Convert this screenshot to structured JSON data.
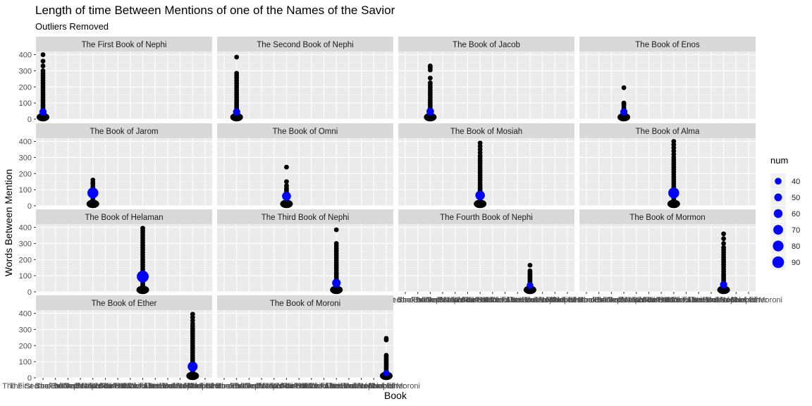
{
  "chart_data": {
    "type": "scatter",
    "title": "Length of time Between Mentions of one of the Names of the Savior",
    "subtitle": "Outliers Removed",
    "xlabel": "Book",
    "ylabel": "Words Between Mention",
    "ylim": [
      0,
      420
    ],
    "yticks": [
      0,
      100,
      200,
      300,
      400
    ],
    "grid": true,
    "facet_layout": "wrap 4 columns",
    "legend": {
      "title": "num",
      "placement": "right",
      "values": [
        40,
        50,
        60,
        70,
        80,
        90
      ],
      "color": "#0000ff"
    },
    "point_color": "#000000",
    "mean_color": "#0000ff",
    "categories": [
      "The First Book of Nephi",
      "The Second Book of Nephi",
      "The Book of Jacob",
      "The Book of Enos",
      "The Book of Jarom",
      "The Book of Omni",
      "The Book of Mosiah",
      "The Book of Alma",
      "The Book of Helaman",
      "The Third Book of Nephi",
      "The Fourth Book of Nephi",
      "The Book of Mormon",
      "The Book of Ether",
      "The Book of Moroni"
    ],
    "panels": [
      {
        "name": "The First Book of Nephi",
        "book_index": 0,
        "max": 400,
        "mean_y": 45,
        "num": 45,
        "points": [
          400,
          360,
          330,
          300,
          285,
          270,
          255,
          240,
          225,
          210,
          195,
          180,
          165,
          150,
          135,
          120,
          108,
          96,
          84,
          72,
          60,
          48,
          36,
          24,
          15,
          8
        ]
      },
      {
        "name": "The Second Book of Nephi",
        "book_index": 1,
        "max": 385,
        "mean_y": 45,
        "num": 45,
        "points": [
          385,
          285,
          270,
          255,
          240,
          225,
          210,
          195,
          180,
          165,
          150,
          135,
          120,
          108,
          96,
          84,
          72,
          60,
          48,
          36,
          24,
          15,
          8
        ]
      },
      {
        "name": "The Book of Jacob",
        "book_index": 2,
        "max": 330,
        "mean_y": 48,
        "num": 48,
        "points": [
          330,
          320,
          305,
          255,
          225,
          210,
          195,
          180,
          165,
          150,
          135,
          120,
          108,
          96,
          84,
          72,
          60,
          48,
          36,
          24,
          15,
          8
        ]
      },
      {
        "name": "The Book of Enos",
        "book_index": 3,
        "max": 195,
        "mean_y": 45,
        "num": 45,
        "points": [
          195,
          100,
          95,
          85,
          70,
          60,
          50,
          40,
          30,
          20,
          12
        ]
      },
      {
        "name": "The Book of Jarom",
        "book_index": 4,
        "max": 160,
        "mean_y": 80,
        "num": 82,
        "points": [
          160,
          145,
          135,
          120,
          110,
          95,
          40,
          20,
          15,
          12
        ]
      },
      {
        "name": "The Book of Omni",
        "book_index": 5,
        "max": 240,
        "mean_y": 60,
        "num": 62,
        "points": [
          240,
          150,
          125,
          110,
          100,
          90,
          80,
          70,
          50,
          40,
          30,
          20,
          12
        ]
      },
      {
        "name": "The Book of Mosiah",
        "book_index": 6,
        "max": 390,
        "mean_y": 65,
        "num": 68,
        "points": [
          390,
          370,
          350,
          330,
          310,
          295,
          280,
          265,
          250,
          235,
          220,
          205,
          190,
          175,
          160,
          145,
          130,
          118,
          106,
          94,
          82,
          70,
          58,
          46,
          34,
          24,
          15,
          8
        ]
      },
      {
        "name": "The Book of Alma",
        "book_index": 7,
        "max": 400,
        "mean_y": 80,
        "num": 82,
        "points": [
          400,
          380,
          360,
          340,
          320,
          300,
          285,
          270,
          255,
          240,
          225,
          210,
          195,
          180,
          165,
          150,
          135,
          120,
          108,
          96,
          84,
          72,
          60,
          48,
          36,
          24,
          15,
          8
        ]
      },
      {
        "name": "The Book of Helaman",
        "book_index": 8,
        "max": 395,
        "mean_y": 95,
        "num": 92,
        "points": [
          395,
          380,
          365,
          350,
          335,
          320,
          305,
          290,
          275,
          260,
          245,
          230,
          215,
          200,
          185,
          170,
          155,
          140,
          125,
          110,
          98,
          86,
          74,
          62,
          50,
          38,
          26,
          15
        ]
      },
      {
        "name": "The Third Book of Nephi",
        "book_index": 9,
        "max": 385,
        "mean_y": 55,
        "num": 58,
        "points": [
          385,
          300,
          285,
          270,
          255,
          240,
          225,
          210,
          195,
          180,
          165,
          150,
          135,
          120,
          108,
          96,
          84,
          72,
          60,
          48,
          36,
          24,
          15,
          8
        ]
      },
      {
        "name": "The Fourth Book of Nephi",
        "book_index": 10,
        "max": 165,
        "mean_y": 40,
        "num": 40,
        "points": [
          165,
          130,
          120,
          110,
          100,
          90,
          80,
          70,
          60,
          50,
          40,
          30,
          20,
          12
        ]
      },
      {
        "name": "The Book of Mormon",
        "book_index": 11,
        "max": 360,
        "mean_y": 45,
        "num": 45,
        "points": [
          360,
          330,
          300,
          275,
          260,
          245,
          230,
          215,
          200,
          185,
          170,
          155,
          140,
          125,
          110,
          98,
          86,
          74,
          62,
          50,
          38,
          26,
          15,
          8
        ]
      },
      {
        "name": "The Book of Ether",
        "book_index": 12,
        "max": 395,
        "mean_y": 70,
        "num": 72,
        "points": [
          395,
          375,
          355,
          335,
          320,
          305,
          290,
          275,
          260,
          245,
          230,
          215,
          200,
          185,
          170,
          155,
          140,
          125,
          112,
          100,
          88,
          76,
          64,
          52,
          40,
          28,
          18
        ]
      },
      {
        "name": "The Book of Moroni",
        "book_index": 13,
        "max": 245,
        "mean_y": 30,
        "num": 35,
        "points": [
          245,
          235,
          140,
          130,
          120,
          110,
          100,
          90,
          80,
          70,
          60,
          50,
          40,
          30,
          20,
          12
        ]
      }
    ]
  }
}
